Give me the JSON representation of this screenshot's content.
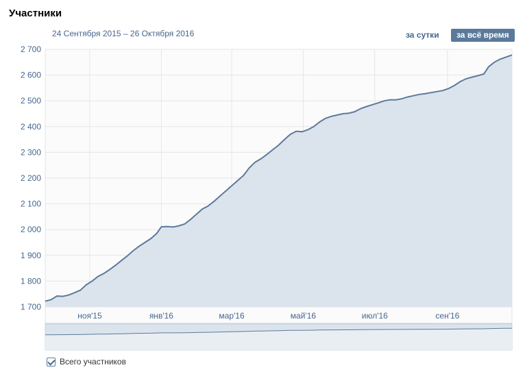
{
  "header": {
    "title": "Участники",
    "date_range": "24 Сентября 2015 – 26 Октября 2016",
    "btn_day": "за сутки",
    "btn_all": "за всё время"
  },
  "legend": {
    "label": "Всего участников",
    "checked": true
  },
  "colors": {
    "line": "#5b7a9b",
    "fill": "#dbe3ec",
    "grid": "#e6e6e6",
    "label": "#45668e"
  },
  "chart_data": {
    "type": "area",
    "title": "Участники",
    "xlabel": "",
    "ylabel": "",
    "x_range": [
      "2015-09-24",
      "2016-10-26"
    ],
    "ylim": [
      1700,
      2700
    ],
    "y_ticks": [
      {
        "value": 1700,
        "label": "1 700"
      },
      {
        "value": 1800,
        "label": "1 800"
      },
      {
        "value": 1900,
        "label": "1 900"
      },
      {
        "value": 2000,
        "label": "2 000"
      },
      {
        "value": 2100,
        "label": "2 100"
      },
      {
        "value": 2200,
        "label": "2 200"
      },
      {
        "value": 2300,
        "label": "2 300"
      },
      {
        "value": 2400,
        "label": "2 400"
      },
      {
        "value": 2500,
        "label": "2 500"
      },
      {
        "value": 2600,
        "label": "2 600"
      },
      {
        "value": 2700,
        "label": "2 700"
      }
    ],
    "x_ticks": [
      {
        "date": "2015-11-01",
        "label": "ноя'15"
      },
      {
        "date": "2016-01-01",
        "label": "янв'16"
      },
      {
        "date": "2016-03-01",
        "label": "мар'16"
      },
      {
        "date": "2016-05-01",
        "label": "май'16"
      },
      {
        "date": "2016-07-01",
        "label": "июл'16"
      },
      {
        "date": "2016-09-01",
        "label": "сен'16"
      }
    ],
    "grid": true,
    "series": [
      {
        "name": "Всего участников",
        "points": [
          [
            "2015-09-24",
            1722
          ],
          [
            "2015-09-29",
            1728
          ],
          [
            "2015-10-04",
            1742
          ],
          [
            "2015-10-09",
            1741
          ],
          [
            "2015-10-14",
            1746
          ],
          [
            "2015-10-19",
            1755
          ],
          [
            "2015-10-24",
            1765
          ],
          [
            "2015-10-29",
            1786
          ],
          [
            "2015-11-03",
            1800
          ],
          [
            "2015-11-08",
            1818
          ],
          [
            "2015-11-13",
            1830
          ],
          [
            "2015-11-18",
            1845
          ],
          [
            "2015-11-23",
            1862
          ],
          [
            "2015-11-28",
            1880
          ],
          [
            "2015-12-03",
            1898
          ],
          [
            "2015-12-08",
            1918
          ],
          [
            "2015-12-13",
            1935
          ],
          [
            "2015-12-18",
            1950
          ],
          [
            "2015-12-23",
            1965
          ],
          [
            "2015-12-28",
            1985
          ],
          [
            "2016-01-01",
            2011
          ],
          [
            "2016-01-06",
            2012
          ],
          [
            "2016-01-11",
            2010
          ],
          [
            "2016-01-16",
            2015
          ],
          [
            "2016-01-21",
            2022
          ],
          [
            "2016-01-26",
            2040
          ],
          [
            "2016-01-31",
            2060
          ],
          [
            "2016-02-05",
            2080
          ],
          [
            "2016-02-10",
            2092
          ],
          [
            "2016-02-15",
            2110
          ],
          [
            "2016-02-20",
            2130
          ],
          [
            "2016-02-25",
            2150
          ],
          [
            "2016-03-01",
            2170
          ],
          [
            "2016-03-06",
            2190
          ],
          [
            "2016-03-11",
            2210
          ],
          [
            "2016-03-16",
            2240
          ],
          [
            "2016-03-21",
            2262
          ],
          [
            "2016-03-26",
            2275
          ],
          [
            "2016-03-31",
            2292
          ],
          [
            "2016-04-05",
            2310
          ],
          [
            "2016-04-10",
            2328
          ],
          [
            "2016-04-15",
            2350
          ],
          [
            "2016-04-20",
            2370
          ],
          [
            "2016-04-25",
            2382
          ],
          [
            "2016-04-30",
            2380
          ],
          [
            "2016-05-05",
            2388
          ],
          [
            "2016-05-10",
            2400
          ],
          [
            "2016-05-15",
            2418
          ],
          [
            "2016-05-20",
            2432
          ],
          [
            "2016-05-25",
            2440
          ],
          [
            "2016-05-30",
            2445
          ],
          [
            "2016-06-04",
            2450
          ],
          [
            "2016-06-09",
            2452
          ],
          [
            "2016-06-14",
            2458
          ],
          [
            "2016-06-19",
            2470
          ],
          [
            "2016-06-24",
            2478
          ],
          [
            "2016-06-29",
            2485
          ],
          [
            "2016-07-04",
            2492
          ],
          [
            "2016-07-09",
            2500
          ],
          [
            "2016-07-14",
            2504
          ],
          [
            "2016-07-19",
            2504
          ],
          [
            "2016-07-24",
            2508
          ],
          [
            "2016-07-29",
            2515
          ],
          [
            "2016-08-03",
            2520
          ],
          [
            "2016-08-08",
            2525
          ],
          [
            "2016-08-13",
            2528
          ],
          [
            "2016-08-18",
            2532
          ],
          [
            "2016-08-23",
            2536
          ],
          [
            "2016-08-28",
            2540
          ],
          [
            "2016-09-02",
            2548
          ],
          [
            "2016-09-07",
            2560
          ],
          [
            "2016-09-12",
            2575
          ],
          [
            "2016-09-17",
            2586
          ],
          [
            "2016-09-22",
            2592
          ],
          [
            "2016-09-27",
            2598
          ],
          [
            "2016-10-02",
            2604
          ],
          [
            "2016-10-06",
            2632
          ],
          [
            "2016-10-11",
            2650
          ],
          [
            "2016-10-16",
            2662
          ],
          [
            "2016-10-21",
            2670
          ],
          [
            "2016-10-26",
            2678
          ]
        ]
      }
    ]
  }
}
